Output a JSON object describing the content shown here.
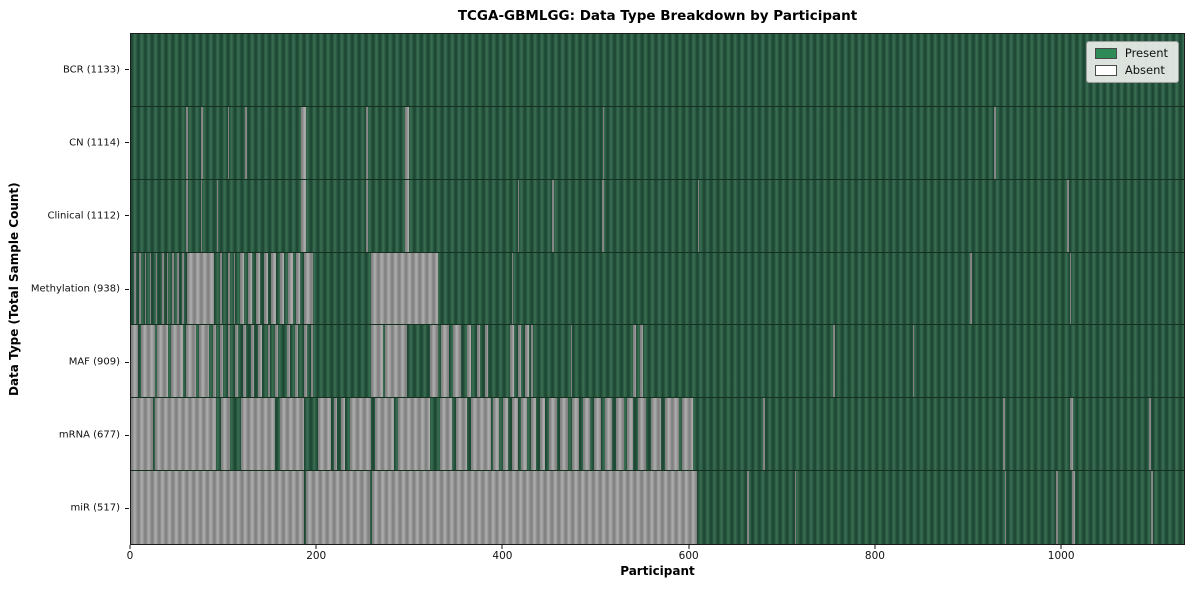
{
  "chart_data": {
    "type": "heatmap",
    "title": "TCGA-GBMLGG: Data Type Breakdown by Participant",
    "xlabel": "Participant",
    "ylabel": "Data Type (Total Sample Count)",
    "x_max": 1133,
    "x_ticks": [
      0,
      200,
      400,
      600,
      800,
      1000
    ],
    "grid": false,
    "legend_position": "upper right",
    "legend": [
      {
        "label": "Present",
        "color": "#2e8b57"
      },
      {
        "label": "Absent",
        "color": "#ffffff"
      }
    ],
    "rows": [
      {
        "id": "bcr",
        "label": "BCR (1133)",
        "present_count": 1133,
        "absent": []
      },
      {
        "id": "cn",
        "label": "CN (1114)",
        "present_count": 1114,
        "absent": [
          [
            59,
            61
          ],
          [
            75,
            77
          ],
          [
            104,
            105
          ],
          [
            123,
            125
          ],
          [
            183,
            188
          ],
          [
            253,
            255
          ],
          [
            295,
            299
          ],
          [
            508,
            509
          ],
          [
            929,
            931
          ]
        ]
      },
      {
        "id": "clinical",
        "label": "Clinical (1112)",
        "present_count": 1112,
        "absent": [
          [
            59,
            61
          ],
          [
            75,
            76
          ],
          [
            92,
            94
          ],
          [
            183,
            188
          ],
          [
            253,
            255
          ],
          [
            295,
            299
          ],
          [
            416,
            418
          ],
          [
            453,
            455
          ],
          [
            507,
            509
          ],
          [
            610,
            611
          ],
          [
            1007,
            1009
          ]
        ]
      },
      {
        "id": "methylation",
        "label": "Methylation (938)",
        "present_count": 938,
        "absent": [
          [
            3,
            5
          ],
          [
            9,
            11
          ],
          [
            15,
            16
          ],
          [
            20,
            22
          ],
          [
            27,
            28
          ],
          [
            33,
            35
          ],
          [
            39,
            40
          ],
          [
            44,
            46
          ],
          [
            50,
            52
          ],
          [
            55,
            57
          ],
          [
            60,
            89
          ],
          [
            96,
            98
          ],
          [
            104,
            106
          ],
          [
            111,
            112
          ],
          [
            117,
            122
          ],
          [
            126,
            130
          ],
          [
            134,
            139
          ],
          [
            143,
            147
          ],
          [
            151,
            156
          ],
          [
            160,
            165
          ],
          [
            169,
            174
          ],
          [
            178,
            182
          ],
          [
            186,
            196
          ],
          [
            258,
            330
          ],
          [
            410,
            411
          ],
          [
            903,
            905
          ],
          [
            1010,
            1011
          ]
        ]
      },
      {
        "id": "maf",
        "label": "MAF (909)",
        "present_count": 909,
        "absent": [
          [
            0,
            8
          ],
          [
            11,
            26
          ],
          [
            28,
            40
          ],
          [
            43,
            56
          ],
          [
            59,
            70
          ],
          [
            73,
            84
          ],
          [
            88,
            91
          ],
          [
            96,
            99
          ],
          [
            104,
            107
          ],
          [
            112,
            115
          ],
          [
            121,
            124
          ],
          [
            129,
            132
          ],
          [
            137,
            141
          ],
          [
            147,
            150
          ],
          [
            155,
            158
          ],
          [
            168,
            171
          ],
          [
            176,
            180
          ],
          [
            186,
            189
          ],
          [
            194,
            196
          ],
          [
            258,
            271
          ],
          [
            273,
            297
          ],
          [
            322,
            330
          ],
          [
            334,
            342
          ],
          [
            347,
            355
          ],
          [
            362,
            366
          ],
          [
            372,
            376
          ],
          [
            381,
            384
          ],
          [
            408,
            412
          ],
          [
            416,
            420
          ],
          [
            424,
            428
          ],
          [
            430,
            433
          ],
          [
            473,
            475
          ],
          [
            540,
            543
          ],
          [
            548,
            551
          ],
          [
            755,
            757
          ],
          [
            841,
            843
          ]
        ]
      },
      {
        "id": "mrna",
        "label": "mRNA (677)",
        "present_count": 677,
        "absent": [
          [
            0,
            24
          ],
          [
            26,
            91
          ],
          [
            97,
            107
          ],
          [
            118,
            155
          ],
          [
            160,
            186
          ],
          [
            201,
            215
          ],
          [
            218,
            222
          ],
          [
            226,
            230
          ],
          [
            236,
            258
          ],
          [
            262,
            283
          ],
          [
            287,
            322
          ],
          [
            333,
            345
          ],
          [
            350,
            362
          ],
          [
            366,
            387
          ],
          [
            390,
            396
          ],
          [
            400,
            406
          ],
          [
            410,
            416
          ],
          [
            420,
            426
          ],
          [
            430,
            436
          ],
          [
            440,
            446
          ],
          [
            450,
            458
          ],
          [
            462,
            470
          ],
          [
            474,
            482
          ],
          [
            486,
            494
          ],
          [
            498,
            506
          ],
          [
            510,
            518
          ],
          [
            522,
            530
          ],
          [
            534,
            540
          ],
          [
            546,
            554
          ],
          [
            560,
            570
          ],
          [
            575,
            590
          ],
          [
            593,
            605
          ],
          [
            680,
            682
          ],
          [
            938,
            940
          ],
          [
            1010,
            1014
          ],
          [
            1095,
            1097
          ]
        ]
      },
      {
        "id": "mir",
        "label": "miR (517)",
        "present_count": 517,
        "absent": [
          [
            0,
            186
          ],
          [
            188,
            257
          ],
          [
            259,
            609
          ],
          [
            663,
            665
          ],
          [
            714,
            716
          ],
          [
            940,
            942
          ],
          [
            995,
            997
          ],
          [
            1012,
            1016
          ],
          [
            1098,
            1100
          ]
        ]
      }
    ]
  }
}
